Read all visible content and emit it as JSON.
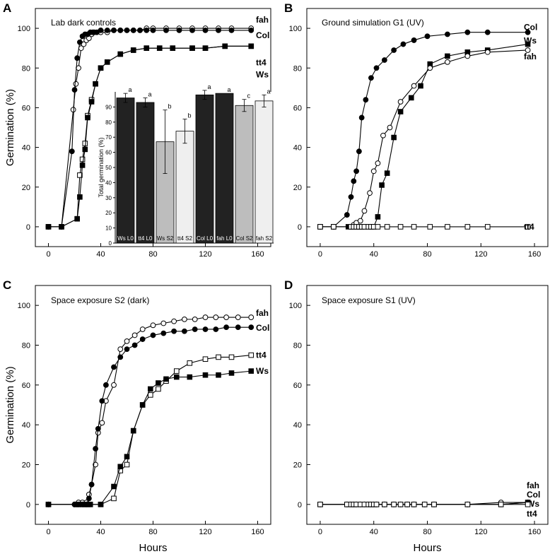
{
  "chart_data": [
    {
      "panel": "A",
      "type": "line",
      "title": "Lab dark controls",
      "xlabel": "",
      "ylabel": "Germination (%)",
      "xlim": [
        -10,
        170
      ],
      "ylim": [
        -10,
        110
      ],
      "xticks": [
        0,
        40,
        80,
        120,
        160
      ],
      "yticks": [
        0,
        20,
        40,
        60,
        80,
        100
      ],
      "series": [
        {
          "name": "fah",
          "marker": "open-circle",
          "x": [
            0,
            10,
            19,
            21,
            23,
            25,
            27,
            29,
            31,
            33,
            35,
            40,
            45,
            50,
            55,
            60,
            65,
            70,
            75,
            80,
            90,
            100,
            110,
            120,
            130,
            140,
            155
          ],
          "y": [
            0,
            0,
            59,
            72,
            80,
            90,
            92,
            94,
            95,
            97,
            98,
            98,
            98,
            99,
            99,
            99,
            99,
            99,
            100,
            100,
            100,
            100,
            100,
            100,
            100,
            100,
            100
          ]
        },
        {
          "name": "Col",
          "marker": "filled-circle",
          "x": [
            0,
            10,
            18,
            20,
            22,
            24,
            26,
            28,
            30,
            32,
            34,
            37,
            40,
            45,
            50,
            55,
            60,
            65,
            70,
            75,
            80,
            90,
            100,
            110,
            120,
            130,
            140,
            155
          ],
          "y": [
            0,
            0,
            38,
            69,
            85,
            93,
            96,
            97,
            97,
            98,
            98,
            98,
            99,
            99,
            99,
            99,
            99,
            99,
            99,
            99,
            99,
            99,
            99,
            99,
            99,
            99,
            99,
            99
          ]
        },
        {
          "name": "tt4",
          "marker": "open-square",
          "x": [
            0,
            10,
            22,
            24,
            26,
            28,
            30,
            33,
            36,
            40,
            45,
            55,
            65,
            75,
            85,
            95,
            110,
            120,
            135,
            155
          ],
          "y": [
            0,
            0,
            4,
            26,
            34,
            42,
            56,
            64,
            72,
            80,
            83,
            87,
            89,
            90,
            90,
            90,
            90,
            90,
            91,
            91
          ]
        },
        {
          "name": "Ws",
          "marker": "filled-square",
          "x": [
            0,
            10,
            22,
            24,
            26,
            28,
            30,
            33,
            36,
            40,
            45,
            55,
            65,
            75,
            85,
            95,
            110,
            120,
            135,
            155
          ],
          "y": [
            0,
            0,
            4,
            15,
            31,
            39,
            55,
            63,
            72,
            80,
            83,
            87,
            89,
            90,
            90,
            90,
            90,
            90,
            91,
            91
          ]
        }
      ]
    },
    {
      "panel": "A-inset",
      "type": "bar",
      "xlabel": "",
      "ylabel": "Total germination (%)",
      "ylim": [
        0,
        100
      ],
      "yticks": [
        0,
        10,
        20,
        30,
        40,
        50,
        60,
        70,
        80,
        90
      ],
      "categories": [
        "Ws L0",
        "tt4 L0",
        "Ws S2",
        "tt4 S2",
        "Col L0",
        "fah L0",
        "Col S2",
        "fah S2"
      ],
      "values": [
        96,
        93,
        67,
        74,
        98,
        99,
        91,
        94
      ],
      "errors": [
        3,
        3,
        21,
        8,
        3,
        0,
        4,
        4
      ],
      "letters": [
        "a",
        "a",
        "b",
        "b",
        "a",
        "a",
        "c",
        "a"
      ],
      "fills": [
        "#222222",
        "#222222",
        "#bdbdbd",
        "#efefef",
        "#222222",
        "#222222",
        "#bdbdbd",
        "#efefef"
      ]
    },
    {
      "panel": "B",
      "type": "line",
      "title": "Ground simulation G1 (UV)",
      "xlabel": "",
      "ylabel": "",
      "xlim": [
        -10,
        170
      ],
      "ylim": [
        -10,
        110
      ],
      "xticks": [
        0,
        40,
        80,
        120,
        160
      ],
      "yticks": [
        0,
        20,
        40,
        60,
        80,
        100
      ],
      "series": [
        {
          "name": "Col",
          "marker": "filled-circle",
          "x": [
            0,
            10,
            20,
            23,
            25,
            27,
            29,
            31,
            34,
            38,
            42,
            48,
            55,
            62,
            70,
            80,
            95,
            110,
            125,
            155
          ],
          "y": [
            0,
            0,
            6,
            15,
            23,
            28,
            38,
            55,
            64,
            75,
            80,
            84,
            89,
            92,
            94,
            96,
            97,
            98,
            98,
            98
          ]
        },
        {
          "name": "Ws",
          "marker": "filled-square",
          "x": [
            0,
            10,
            21,
            23,
            25,
            27,
            29,
            31,
            33,
            36,
            38,
            40,
            43,
            46,
            50,
            55,
            60,
            68,
            75,
            82,
            95,
            110,
            125,
            155
          ],
          "y": [
            0,
            0,
            0,
            0,
            0,
            0,
            0,
            0,
            0,
            0,
            0,
            0,
            5,
            21,
            27,
            45,
            58,
            65,
            71,
            82,
            86,
            88,
            89,
            92
          ]
        },
        {
          "name": "fah",
          "marker": "open-circle",
          "x": [
            0,
            10,
            23,
            25,
            27,
            30,
            33,
            37,
            40,
            43,
            47,
            52,
            60,
            70,
            82,
            95,
            110,
            125,
            155
          ],
          "y": [
            0,
            0,
            0,
            1,
            2,
            3,
            8,
            17,
            28,
            32,
            46,
            50,
            63,
            71,
            80,
            83,
            86,
            88,
            89
          ]
        },
        {
          "name": "tt4",
          "marker": "open-square",
          "x": [
            0,
            10,
            23,
            25,
            27,
            29,
            31,
            33,
            36,
            38,
            40,
            43,
            50,
            60,
            70,
            82,
            95,
            110,
            125,
            155
          ],
          "y": [
            0,
            0,
            0,
            0,
            0,
            0,
            0,
            0,
            0,
            0,
            0,
            0,
            0,
            0,
            0,
            0,
            0,
            0,
            0,
            0
          ]
        }
      ]
    },
    {
      "panel": "C",
      "type": "line",
      "title": "Space exposure S2 (dark)",
      "xlabel": "Hours",
      "ylabel": "Germination (%)",
      "xlim": [
        -10,
        170
      ],
      "ylim": [
        -10,
        110
      ],
      "xticks": [
        0,
        40,
        80,
        120,
        160
      ],
      "yticks": [
        0,
        20,
        40,
        60,
        80,
        100
      ],
      "series": [
        {
          "name": "fah",
          "marker": "open-circle",
          "x": [
            0,
            20,
            23,
            26,
            29,
            31,
            33,
            36,
            38,
            41,
            44,
            50,
            55,
            60,
            66,
            72,
            80,
            88,
            96,
            104,
            112,
            120,
            128,
            136,
            145,
            155
          ],
          "y": [
            0,
            0,
            1,
            1,
            1,
            5,
            10,
            20,
            36,
            41,
            52,
            60,
            78,
            82,
            85,
            88,
            90,
            91,
            92,
            93,
            93,
            94,
            94,
            94,
            94,
            94
          ]
        },
        {
          "name": "Col",
          "marker": "filled-circle",
          "x": [
            0,
            20,
            23,
            26,
            29,
            31,
            33,
            36,
            38,
            41,
            44,
            50,
            55,
            60,
            66,
            72,
            80,
            88,
            96,
            104,
            112,
            120,
            128,
            136,
            145,
            155
          ],
          "y": [
            0,
            0,
            0,
            0,
            0,
            3,
            10,
            28,
            38,
            52,
            60,
            69,
            74,
            78,
            80,
            83,
            85,
            86,
            87,
            87,
            88,
            88,
            88,
            89,
            89,
            89
          ]
        },
        {
          "name": "tt4",
          "marker": "open-square",
          "x": [
            0,
            21,
            23,
            26,
            28,
            30,
            32,
            40,
            50,
            55,
            60,
            65,
            72,
            78,
            84,
            90,
            98,
            108,
            120,
            130,
            140,
            155
          ],
          "y": [
            0,
            0,
            0,
            0,
            0,
            0,
            0,
            0,
            3,
            17,
            20,
            37,
            50,
            55,
            58,
            62,
            67,
            71,
            73,
            74,
            74,
            75
          ]
        },
        {
          "name": "Ws",
          "marker": "filled-square",
          "x": [
            0,
            21,
            23,
            26,
            28,
            30,
            32,
            40,
            50,
            55,
            60,
            65,
            72,
            78,
            84,
            90,
            98,
            108,
            120,
            130,
            140,
            155
          ],
          "y": [
            0,
            0,
            0,
            0,
            0,
            0,
            0,
            0,
            9,
            19,
            24,
            37,
            50,
            58,
            61,
            63,
            64,
            64,
            65,
            65,
            66,
            67
          ]
        }
      ]
    },
    {
      "panel": "D",
      "type": "line",
      "title": "Space exposure S1 (UV)",
      "xlabel": "Hours",
      "ylabel": "",
      "xlim": [
        -10,
        170
      ],
      "ylim": [
        -10,
        110
      ],
      "xticks": [
        0,
        40,
        80,
        120,
        160
      ],
      "yticks": [
        0,
        20,
        40,
        60,
        80,
        100
      ],
      "series": [
        {
          "name": "fah",
          "marker": "open-circle",
          "x": [
            0,
            20,
            23,
            25,
            27,
            30,
            33,
            36,
            38,
            40,
            42,
            48,
            55,
            60,
            65,
            70,
            78,
            85,
            110,
            135,
            155
          ],
          "y": [
            0,
            0,
            0,
            0,
            0,
            0,
            0,
            0,
            0,
            0,
            0,
            0,
            0,
            0,
            0,
            0,
            0,
            0,
            0,
            1,
            1
          ]
        },
        {
          "name": "Col",
          "marker": "filled-circle",
          "x": [
            0,
            20,
            23,
            25,
            27,
            30,
            33,
            36,
            38,
            40,
            42,
            48,
            55,
            60,
            65,
            70,
            78,
            85,
            110,
            135,
            155
          ],
          "y": [
            0,
            0,
            0,
            0,
            0,
            0,
            0,
            0,
            0,
            0,
            0,
            0,
            0,
            0,
            0,
            0,
            0,
            0,
            0,
            0,
            1
          ]
        },
        {
          "name": "Ws",
          "marker": "filled-square",
          "x": [
            0,
            20,
            23,
            25,
            27,
            30,
            33,
            36,
            38,
            40,
            42,
            48,
            55,
            60,
            65,
            70,
            78,
            85,
            110,
            135,
            155
          ],
          "y": [
            0,
            0,
            0,
            0,
            0,
            0,
            0,
            0,
            0,
            0,
            0,
            0,
            0,
            0,
            0,
            0,
            0,
            0,
            0,
            0,
            1
          ]
        },
        {
          "name": "tt4",
          "marker": "open-square",
          "x": [
            0,
            20,
            23,
            25,
            27,
            30,
            33,
            36,
            38,
            40,
            42,
            48,
            55,
            60,
            65,
            70,
            78,
            85,
            110,
            135,
            155
          ],
          "y": [
            0,
            0,
            0,
            0,
            0,
            0,
            0,
            0,
            0,
            0,
            0,
            0,
            0,
            0,
            0,
            0,
            0,
            0,
            0,
            0,
            0
          ]
        }
      ]
    }
  ]
}
